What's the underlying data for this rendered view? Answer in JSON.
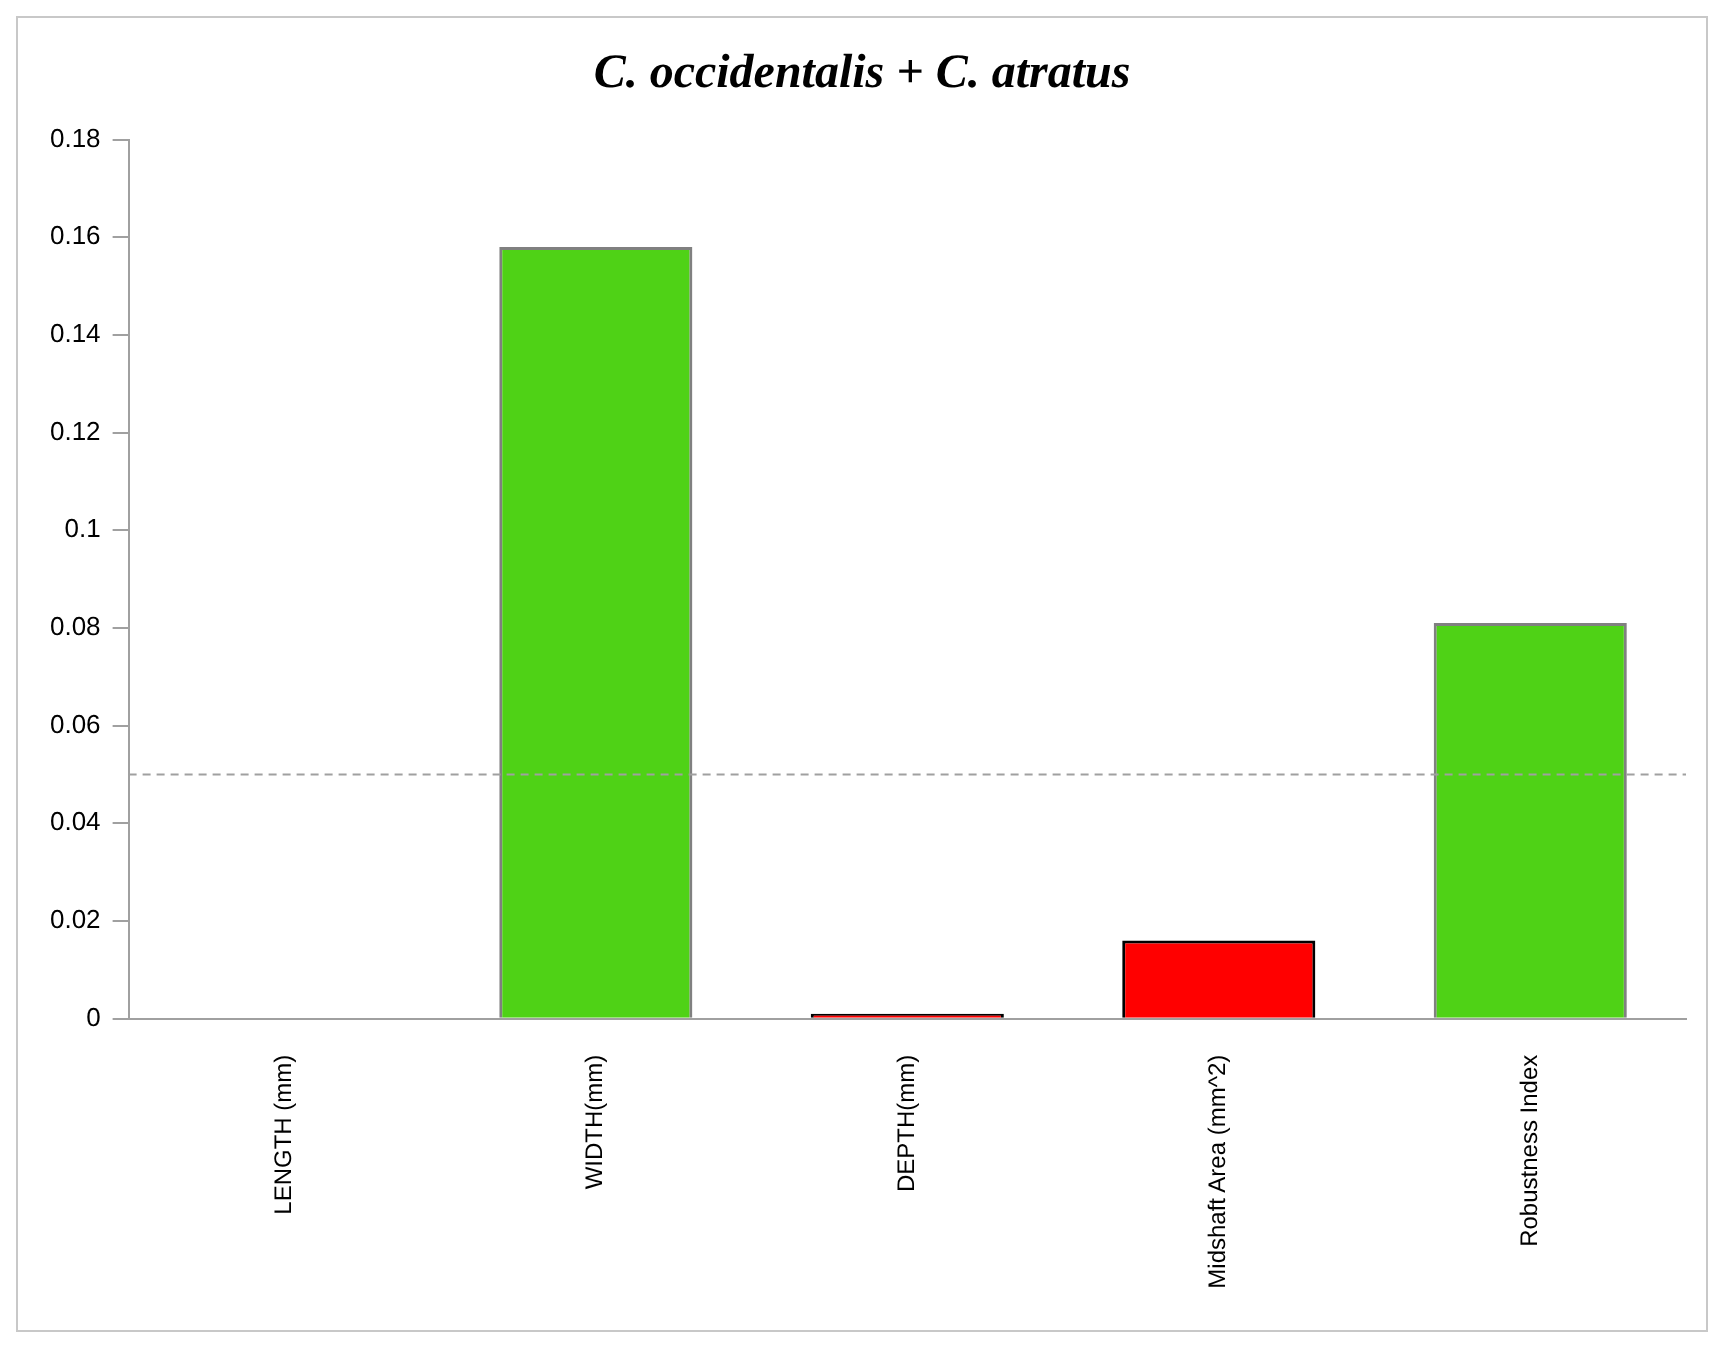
{
  "chart_data": {
    "type": "bar",
    "title": "C. occidentalis + C. atratus",
    "categories": [
      "LENGTH (mm)",
      "WIDTH(mm)",
      "DEPTH(mm)",
      "Midshaft Area (mm^2)",
      "Robustness Index"
    ],
    "values": [
      0,
      0.158,
      0.001,
      0.016,
      0.081
    ],
    "colors": [
      "#4fd216",
      "#4fd216",
      "#ff0000",
      "#ff0000",
      "#4fd216"
    ],
    "ylim": [
      0,
      0.18
    ],
    "yticks": [
      0,
      0.02,
      0.04,
      0.06,
      0.08,
      0.1,
      0.12,
      0.14,
      0.16,
      0.18
    ],
    "ref_lines": [
      {
        "axis": "y",
        "value": 0.05,
        "color": "#a0a0a0",
        "line_style": "dashed"
      }
    ],
    "grid": false,
    "legend": false
  }
}
